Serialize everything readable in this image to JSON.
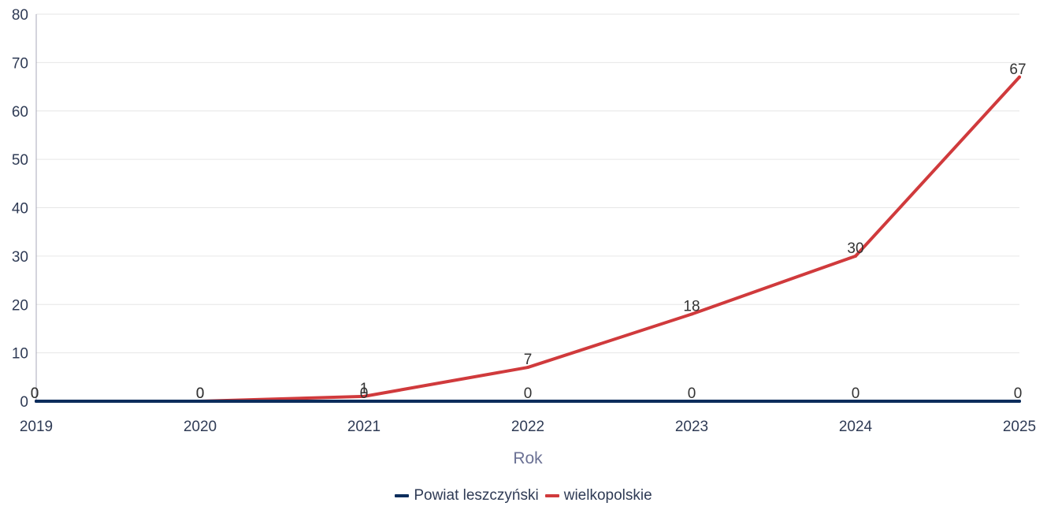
{
  "colors": {
    "powiat": "#0b2d5c",
    "wielkopolskie": "#d03a3c",
    "grid": "#e6e6e6",
    "axis": "#a8a8b8"
  },
  "chart_data": {
    "type": "line",
    "x": [
      "2019",
      "2020",
      "2021",
      "2022",
      "2023",
      "2024",
      "2025"
    ],
    "xlabel": "Rok",
    "ylabel": "",
    "ylim": [
      0,
      80
    ],
    "yticks": [
      "0",
      "10",
      "20",
      "30",
      "40",
      "50",
      "60",
      "70",
      "80"
    ],
    "grid": true,
    "legend_position": "bottom-center",
    "series": [
      {
        "name": "Powiat leszczyński",
        "color_key": "powiat",
        "values": [
          0,
          0,
          0,
          0,
          0,
          0,
          0
        ]
      },
      {
        "name": "wielkopolskie",
        "color_key": "wielkopolskie",
        "values": [
          0,
          0,
          1,
          7,
          18,
          30,
          67
        ]
      }
    ]
  }
}
